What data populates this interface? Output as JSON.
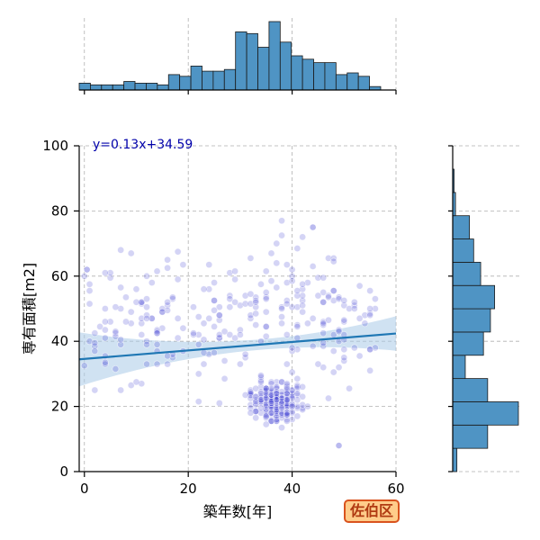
{
  "badge": {
    "label": "佐伯区",
    "bg": "#ffcc8a",
    "border": "#d9531e",
    "text": "#b03a12"
  },
  "colors": {
    "point": "#3a3ad0",
    "fit": "#1f77b4",
    "band": "#aacbe8",
    "hist": "#4f94c4",
    "grid": "#b0b0b0"
  },
  "chart_data": {
    "type": "scatter",
    "xlabel": "築年数[年]",
    "ylabel": "専有面積[m2]",
    "xlim": [
      -1,
      60
    ],
    "ylim": [
      0,
      100
    ],
    "xticks": [
      0,
      20,
      40,
      60
    ],
    "yticks": [
      0,
      20,
      40,
      60,
      80,
      100
    ],
    "grid": true,
    "regression": {
      "label": "y=0.13x+34.59",
      "slope": 0.13,
      "intercept": 34.59
    },
    "points_summary": "approx. 500 semi-transparent points; dense cluster at x 30-45, y 15-30",
    "clusters": [
      {
        "x": [
          30,
          44
        ],
        "y": [
          13,
          30
        ],
        "n": 230
      },
      {
        "x": [
          0,
          56
        ],
        "y": [
          15,
          80
        ],
        "n": 270
      }
    ],
    "highlight_points": [
      {
        "x": 44,
        "y": 75
      },
      {
        "x": 0.5,
        "y": 62
      },
      {
        "x": 49,
        "y": 8
      }
    ],
    "marginal_x": {
      "bin_edges_start": -1,
      "bin_width": 2.15,
      "counts": [
        4,
        3,
        3,
        3,
        5,
        4,
        4,
        3,
        9,
        8,
        14,
        11,
        11,
        12,
        34,
        33,
        25,
        40,
        28,
        20,
        18,
        16,
        16,
        9,
        10,
        8,
        2
      ]
    },
    "marginal_y": {
      "bin_edges_start": 0,
      "bin_width": 7.14,
      "counts": [
        3,
        25,
        47,
        25,
        9,
        22,
        27,
        30,
        20,
        15,
        12,
        2,
        1,
        0
      ]
    }
  }
}
